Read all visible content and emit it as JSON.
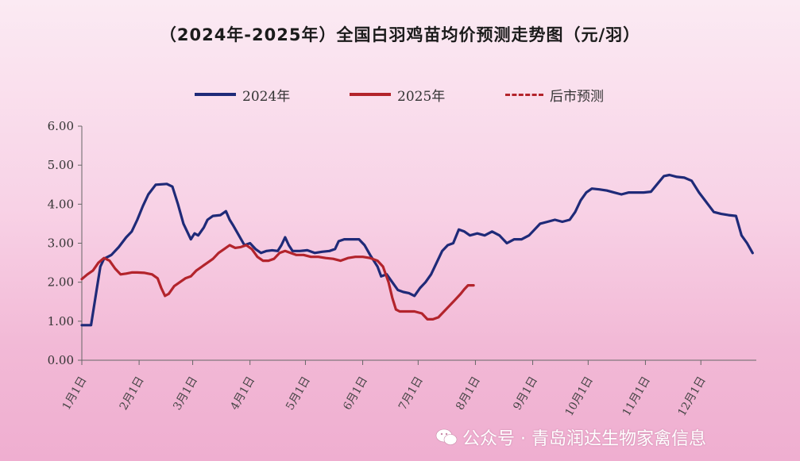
{
  "chart_data": {
    "type": "line",
    "title": "（2024年-2025年）全国白羽鸡苗均价预测走势图（元/羽）",
    "xlabel": "",
    "ylabel": "",
    "ylim": [
      0,
      6
    ],
    "yticks": [
      "0.00",
      "1.00",
      "2.00",
      "3.00",
      "4.00",
      "5.00",
      "6.00"
    ],
    "x_domain": [
      0,
      365
    ],
    "x_ticks": [
      {
        "label": "1月1日",
        "x": 0
      },
      {
        "label": "2月1日",
        "x": 31
      },
      {
        "label": "3月1日",
        "x": 60
      },
      {
        "label": "4月1日",
        "x": 91
      },
      {
        "label": "5月1日",
        "x": 121
      },
      {
        "label": "6月1日",
        "x": 152
      },
      {
        "label": "7月1日",
        "x": 182
      },
      {
        "label": "8月1日",
        "x": 213
      },
      {
        "label": "9月1日",
        "x": 244
      },
      {
        "label": "10月1日",
        "x": 274
      },
      {
        "label": "11月1日",
        "x": 305
      },
      {
        "label": "12月1日",
        "x": 335
      }
    ],
    "grid": false,
    "legend_position": "top",
    "series": [
      {
        "name": "2024年",
        "color": "#1f2a78",
        "style": "solid",
        "points": [
          [
            0,
            0.9
          ],
          [
            5,
            0.9
          ],
          [
            8,
            1.8
          ],
          [
            10,
            2.4
          ],
          [
            12,
            2.6
          ],
          [
            16,
            2.7
          ],
          [
            20,
            2.9
          ],
          [
            24,
            3.15
          ],
          [
            27,
            3.3
          ],
          [
            30,
            3.6
          ],
          [
            33,
            3.95
          ],
          [
            36,
            4.25
          ],
          [
            40,
            4.5
          ],
          [
            46,
            4.52
          ],
          [
            49,
            4.45
          ],
          [
            52,
            4.0
          ],
          [
            55,
            3.5
          ],
          [
            57,
            3.3
          ],
          [
            59,
            3.1
          ],
          [
            61,
            3.25
          ],
          [
            63,
            3.2
          ],
          [
            66,
            3.4
          ],
          [
            68,
            3.6
          ],
          [
            71,
            3.7
          ],
          [
            75,
            3.72
          ],
          [
            78,
            3.82
          ],
          [
            80,
            3.6
          ],
          [
            82,
            3.45
          ],
          [
            85,
            3.2
          ],
          [
            88,
            2.95
          ],
          [
            91,
            3.0
          ],
          [
            94,
            2.85
          ],
          [
            97,
            2.75
          ],
          [
            100,
            2.8
          ],
          [
            103,
            2.82
          ],
          [
            106,
            2.8
          ],
          [
            108,
            2.95
          ],
          [
            110,
            3.15
          ],
          [
            112,
            2.95
          ],
          [
            114,
            2.8
          ],
          [
            118,
            2.8
          ],
          [
            122,
            2.82
          ],
          [
            126,
            2.75
          ],
          [
            130,
            2.78
          ],
          [
            134,
            2.8
          ],
          [
            137,
            2.85
          ],
          [
            139,
            3.05
          ],
          [
            142,
            3.1
          ],
          [
            146,
            3.1
          ],
          [
            150,
            3.1
          ],
          [
            153,
            2.95
          ],
          [
            156,
            2.7
          ],
          [
            160,
            2.4
          ],
          [
            162,
            2.15
          ],
          [
            165,
            2.2
          ],
          [
            168,
            2.0
          ],
          [
            171,
            1.8
          ],
          [
            174,
            1.75
          ],
          [
            177,
            1.72
          ],
          [
            180,
            1.65
          ],
          [
            183,
            1.85
          ],
          [
            186,
            2.0
          ],
          [
            189,
            2.2
          ],
          [
            192,
            2.5
          ],
          [
            195,
            2.8
          ],
          [
            198,
            2.95
          ],
          [
            201,
            3.0
          ],
          [
            204,
            3.35
          ],
          [
            207,
            3.3
          ],
          [
            210,
            3.2
          ],
          [
            214,
            3.25
          ],
          [
            218,
            3.2
          ],
          [
            222,
            3.3
          ],
          [
            226,
            3.2
          ],
          [
            230,
            3.0
          ],
          [
            234,
            3.1
          ],
          [
            238,
            3.1
          ],
          [
            242,
            3.2
          ],
          [
            245,
            3.35
          ],
          [
            248,
            3.5
          ],
          [
            252,
            3.55
          ],
          [
            256,
            3.6
          ],
          [
            260,
            3.55
          ],
          [
            264,
            3.6
          ],
          [
            267,
            3.8
          ],
          [
            270,
            4.1
          ],
          [
            273,
            4.3
          ],
          [
            276,
            4.4
          ],
          [
            280,
            4.38
          ],
          [
            284,
            4.35
          ],
          [
            288,
            4.3
          ],
          [
            292,
            4.25
          ],
          [
            296,
            4.3
          ],
          [
            300,
            4.3
          ],
          [
            304,
            4.3
          ],
          [
            308,
            4.32
          ],
          [
            312,
            4.55
          ],
          [
            315,
            4.72
          ],
          [
            318,
            4.75
          ],
          [
            322,
            4.7
          ],
          [
            326,
            4.68
          ],
          [
            330,
            4.6
          ],
          [
            334,
            4.3
          ],
          [
            338,
            4.05
          ],
          [
            342,
            3.8
          ],
          [
            346,
            3.75
          ],
          [
            350,
            3.72
          ],
          [
            354,
            3.7
          ],
          [
            357,
            3.2
          ],
          [
            360,
            3.0
          ],
          [
            363,
            2.75
          ]
        ]
      },
      {
        "name": "2025年",
        "color": "#b3242c",
        "style": "solid",
        "points": [
          [
            0,
            2.08
          ],
          [
            3,
            2.2
          ],
          [
            6,
            2.3
          ],
          [
            9,
            2.5
          ],
          [
            12,
            2.62
          ],
          [
            15,
            2.55
          ],
          [
            18,
            2.35
          ],
          [
            21,
            2.2
          ],
          [
            24,
            2.22
          ],
          [
            27,
            2.25
          ],
          [
            30,
            2.25
          ],
          [
            34,
            2.24
          ],
          [
            38,
            2.2
          ],
          [
            41,
            2.1
          ],
          [
            43,
            1.85
          ],
          [
            45,
            1.65
          ],
          [
            47,
            1.7
          ],
          [
            50,
            1.9
          ],
          [
            53,
            2.0
          ],
          [
            56,
            2.1
          ],
          [
            59,
            2.15
          ],
          [
            62,
            2.3
          ],
          [
            65,
            2.4
          ],
          [
            68,
            2.5
          ],
          [
            71,
            2.6
          ],
          [
            74,
            2.75
          ],
          [
            77,
            2.85
          ],
          [
            80,
            2.95
          ],
          [
            83,
            2.88
          ],
          [
            86,
            2.9
          ],
          [
            89,
            2.95
          ],
          [
            92,
            2.85
          ],
          [
            95,
            2.65
          ],
          [
            98,
            2.55
          ],
          [
            101,
            2.55
          ],
          [
            104,
            2.6
          ],
          [
            107,
            2.75
          ],
          [
            110,
            2.8
          ],
          [
            113,
            2.75
          ],
          [
            116,
            2.7
          ],
          [
            120,
            2.7
          ],
          [
            124,
            2.65
          ],
          [
            128,
            2.65
          ],
          [
            132,
            2.62
          ],
          [
            136,
            2.6
          ],
          [
            140,
            2.55
          ],
          [
            144,
            2.62
          ],
          [
            148,
            2.65
          ],
          [
            152,
            2.65
          ],
          [
            156,
            2.62
          ],
          [
            160,
            2.55
          ],
          [
            163,
            2.4
          ],
          [
            166,
            2.0
          ],
          [
            168,
            1.6
          ],
          [
            170,
            1.3
          ],
          [
            172,
            1.25
          ],
          [
            176,
            1.25
          ],
          [
            180,
            1.25
          ],
          [
            184,
            1.2
          ],
          [
            187,
            1.05
          ],
          [
            190,
            1.05
          ],
          [
            193,
            1.1
          ],
          [
            196,
            1.25
          ],
          [
            199,
            1.4
          ],
          [
            202,
            1.55
          ],
          [
            205,
            1.7
          ],
          [
            207,
            1.82
          ],
          [
            209,
            1.92
          ],
          [
            212,
            1.92
          ]
        ]
      },
      {
        "name": "后市预测",
        "color": "#b3242c",
        "style": "dashed",
        "points": []
      }
    ]
  },
  "watermark": {
    "text": "公众号 · 青岛润达生物家禽信息",
    "icon": "wechat-icon"
  }
}
